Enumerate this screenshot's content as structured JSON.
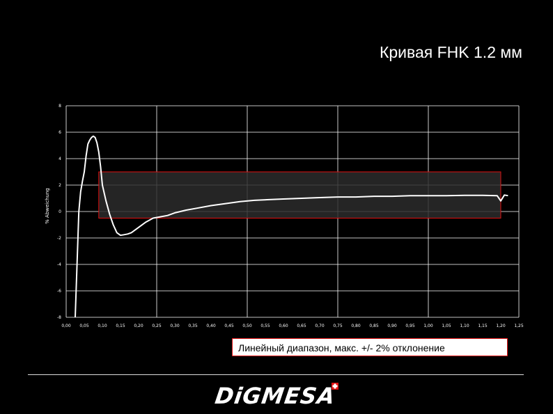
{
  "slide": {
    "title": "Кривая FHK 1.2 мм",
    "caption": "Линейный диапазон, макс. +/- 2% отклонение",
    "logo_text": "DiGMESA"
  },
  "colors": {
    "background": "#000000",
    "curve": "#ffffff",
    "range_box_border": "#e01010",
    "range_box_fill": "#2b2b2b",
    "grid": "#ffffff"
  },
  "chart_data": {
    "type": "line",
    "title": "",
    "xlabel": "",
    "ylabel": "% Abweichung",
    "xlim": [
      0.0,
      1.25
    ],
    "ylim": [
      -8,
      8
    ],
    "grid": true,
    "x_ticks": [
      "0,00",
      "0,05",
      "0,10",
      "0,15",
      "0,20",
      "0,25",
      "0,30",
      "0,35",
      "0,40",
      "0,45",
      "0,50",
      "0,55",
      "0,60",
      "0,65",
      "0,70",
      "0,75",
      "0,80",
      "0,85",
      "0,90",
      "0,95",
      "1,00",
      "1,05",
      "1,10",
      "1,15",
      "1,20",
      "1,25"
    ],
    "y_ticks": [
      "8",
      "6",
      "4",
      "2",
      "0",
      "-2",
      "-4",
      "-6",
      "-8"
    ],
    "linear_range": {
      "x_start": 0.09,
      "x_end": 1.2,
      "y_min": -0.5,
      "y_max": 3.0
    },
    "series": [
      {
        "x": [
          0.025,
          0.03,
          0.035,
          0.04,
          0.045,
          0.05,
          0.055,
          0.06,
          0.065,
          0.07,
          0.075,
          0.08,
          0.085,
          0.09,
          0.095,
          0.1,
          0.11,
          0.12,
          0.13,
          0.14,
          0.15,
          0.16,
          0.17,
          0.18,
          0.2,
          0.22,
          0.24,
          0.26,
          0.28,
          0.3,
          0.33,
          0.36,
          0.4,
          0.44,
          0.48,
          0.52,
          0.56,
          0.6,
          0.65,
          0.7,
          0.75,
          0.8,
          0.85,
          0.9,
          0.95,
          1.0,
          1.05,
          1.1,
          1.15,
          1.19,
          1.2,
          1.21,
          1.22
        ],
        "y": [
          -8.0,
          -4.0,
          0.0,
          1.5,
          2.3,
          3.0,
          4.2,
          5.1,
          5.4,
          5.6,
          5.7,
          5.6,
          5.2,
          4.5,
          3.4,
          2.0,
          0.8,
          -0.2,
          -1.0,
          -1.6,
          -1.8,
          -1.75,
          -1.7,
          -1.6,
          -1.2,
          -0.8,
          -0.5,
          -0.4,
          -0.3,
          -0.1,
          0.1,
          0.25,
          0.45,
          0.6,
          0.75,
          0.85,
          0.9,
          0.95,
          1.0,
          1.05,
          1.1,
          1.1,
          1.15,
          1.15,
          1.2,
          1.2,
          1.2,
          1.22,
          1.22,
          1.2,
          0.8,
          1.25,
          1.2
        ]
      }
    ]
  }
}
